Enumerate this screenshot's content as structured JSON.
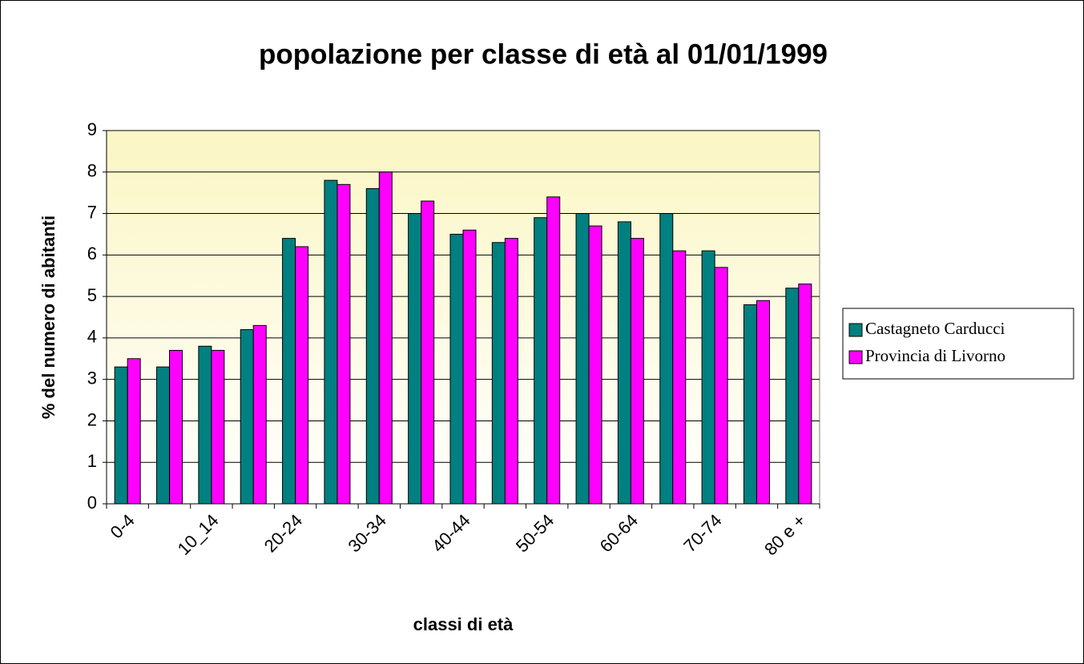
{
  "chart_data": {
    "type": "bar",
    "title": "popolazione per classe di età al 01/01/1999",
    "x_label": "classi di età",
    "y_label": "% del numero di abitanti",
    "categories": [
      "0-4",
      null,
      "10_14",
      null,
      "20-24",
      null,
      "30-34",
      null,
      "40-44",
      null,
      "50-54",
      null,
      "60-64",
      null,
      "70-74",
      null,
      "80 e +"
    ],
    "series": [
      {
        "name": "Castagneto Carducci",
        "color": "#008080",
        "values": [
          3.3,
          3.3,
          3.8,
          4.2,
          6.4,
          7.8,
          7.6,
          7.0,
          6.5,
          6.3,
          6.9,
          7.0,
          6.8,
          7.0,
          6.1,
          4.8,
          5.2
        ]
      },
      {
        "name": "Provincia di Livorno",
        "color": "#ff00ff",
        "values": [
          3.5,
          3.7,
          3.7,
          4.3,
          6.2,
          7.7,
          8.0,
          7.3,
          6.6,
          6.4,
          7.4,
          6.7,
          6.4,
          6.1,
          5.7,
          4.9,
          5.3
        ]
      }
    ],
    "ylim": [
      0,
      9
    ],
    "yticks": [
      0,
      1,
      2,
      3,
      4,
      5,
      6,
      7,
      8,
      9
    ],
    "grid": true,
    "legend": "right"
  }
}
